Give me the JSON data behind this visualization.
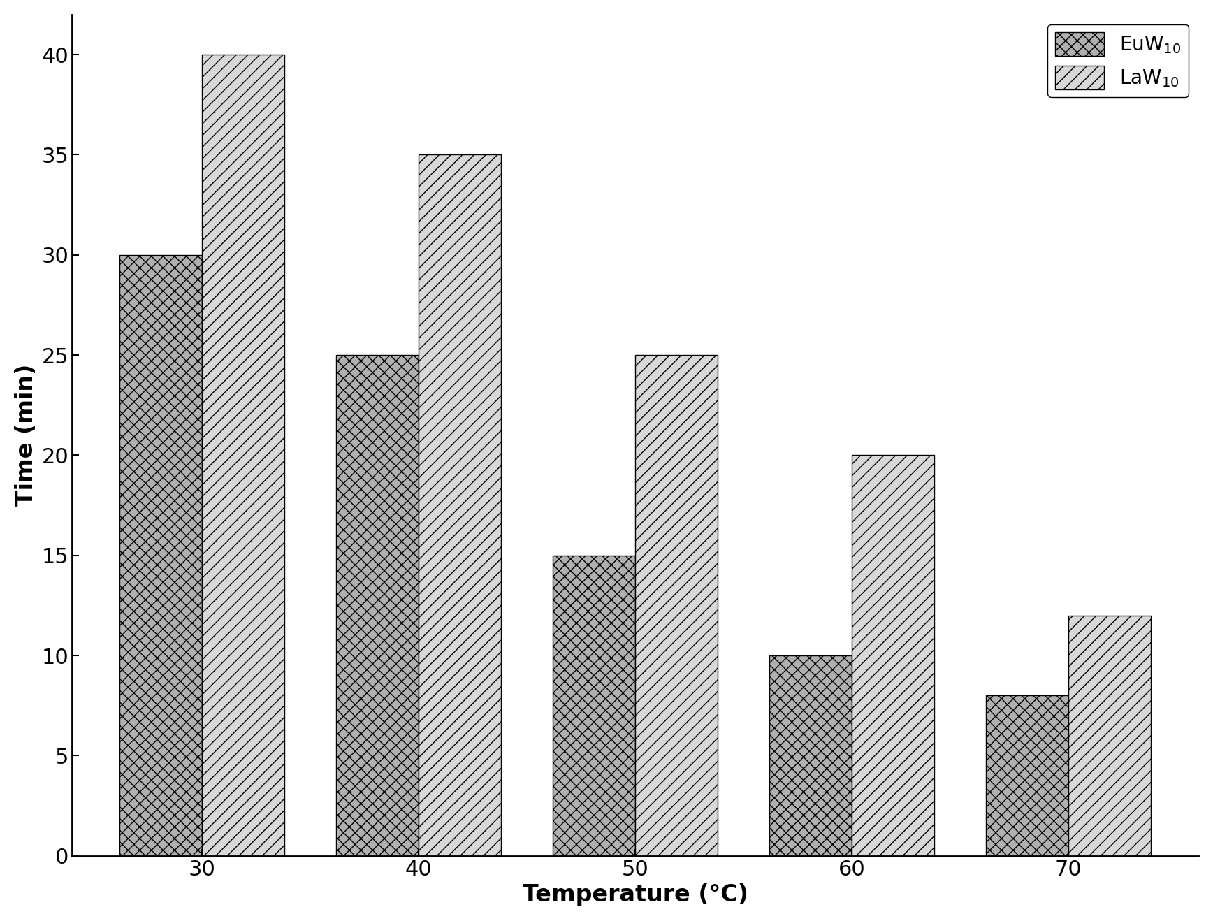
{
  "categories": [
    30,
    40,
    50,
    60,
    70
  ],
  "EuW10_values": [
    30,
    25,
    15,
    10,
    8
  ],
  "LaW10_values": [
    40,
    35,
    25,
    20,
    12
  ],
  "xlabel": "Temperature (°C)",
  "ylabel": "Time (min)",
  "ylim": [
    0,
    42
  ],
  "yticks": [
    0,
    5,
    10,
    15,
    20,
    25,
    30,
    35,
    40
  ],
  "bar_width": 0.38,
  "EuW10_color": "#b0b0b0",
  "LaW10_color": "#d8d8d8",
  "background_color": "#ffffff",
  "legend_loc": "upper right",
  "xlabel_fontsize": 24,
  "ylabel_fontsize": 24,
  "tick_fontsize": 22,
  "legend_fontsize": 20
}
